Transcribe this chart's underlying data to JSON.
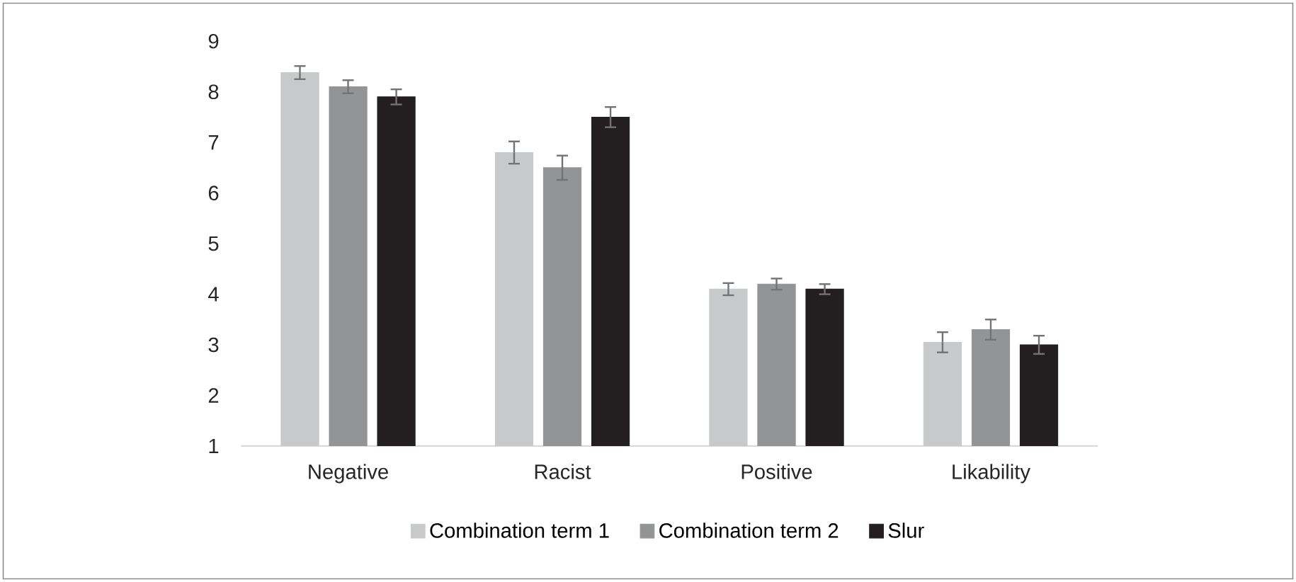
{
  "chart_data": {
    "type": "bar",
    "categories": [
      "Negative",
      "Racist",
      "Positive",
      "Likability"
    ],
    "series": [
      {
        "name": "Combination term 1",
        "color": "#c8c9cb",
        "values": [
          8.38,
          6.8,
          4.1,
          3.05
        ],
        "errors": [
          0.13,
          0.22,
          0.12,
          0.2
        ]
      },
      {
        "name": "Combination term 2",
        "color": "#939496",
        "values": [
          8.1,
          6.5,
          4.2,
          3.3
        ],
        "errors": [
          0.13,
          0.24,
          0.11,
          0.2
        ]
      },
      {
        "name": "Slur",
        "color": "#231f20",
        "values": [
          7.9,
          7.5,
          4.1,
          3.0
        ],
        "errors": [
          0.15,
          0.2,
          0.1,
          0.18
        ]
      }
    ],
    "ylim": [
      1,
      9
    ],
    "yticks": [
      1,
      2,
      3,
      4,
      5,
      6,
      7,
      8,
      9
    ],
    "grid": false,
    "legend": "bottom"
  }
}
